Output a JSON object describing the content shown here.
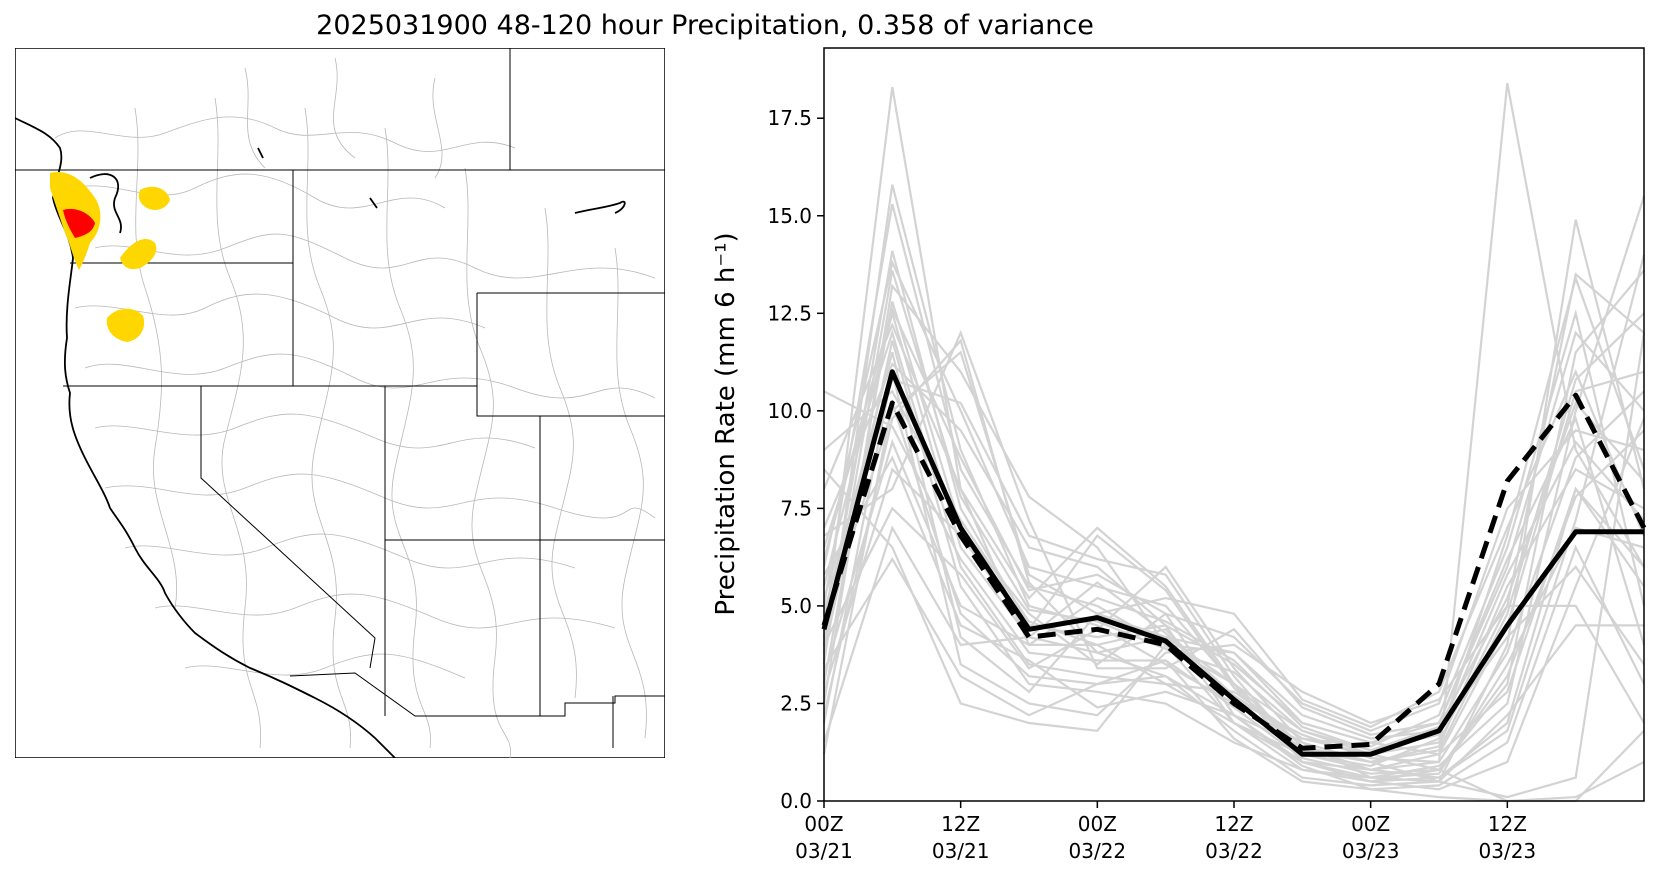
{
  "title": "2025031900 48-120 hour Precipitation, 0.358 of variance",
  "colors": {
    "ensemble": "#d3d3d3",
    "mean": "#000000",
    "basin_high": "#ff0000",
    "basin_mid": "#ffd700",
    "basin_outline": "#b0b0b0",
    "coast": "#000000"
  },
  "map": {
    "region": "western-united-states",
    "highlighted_basins": [
      {
        "area": "olympic-peninsula",
        "level": "high"
      },
      {
        "area": "olympic-peninsula-outer",
        "level": "mid"
      },
      {
        "area": "north-cascades",
        "level": "mid"
      },
      {
        "area": "central-washington",
        "level": "mid"
      },
      {
        "area": "central-oregon",
        "level": "mid"
      }
    ]
  },
  "chart_data": {
    "type": "line",
    "title": "",
    "xlabel": "",
    "ylabel": "Precipitation Rate (mm 6 h⁻¹)",
    "x": [
      0,
      6,
      12,
      18,
      24,
      30,
      36,
      42,
      48,
      54,
      60,
      66,
      72
    ],
    "xlim": [
      0,
      72
    ],
    "xticks": [
      {
        "x": 0,
        "label": [
          "00Z",
          "03/21"
        ]
      },
      {
        "x": 12,
        "label": [
          "12Z",
          "03/21"
        ]
      },
      {
        "x": 24,
        "label": [
          "00Z",
          "03/22"
        ]
      },
      {
        "x": 36,
        "label": [
          "12Z",
          "03/22"
        ]
      },
      {
        "x": 48,
        "label": [
          "00Z",
          "03/23"
        ]
      },
      {
        "x": 60,
        "label": [
          "12Z",
          "03/23"
        ]
      }
    ],
    "ylim": [
      0,
      19.3
    ],
    "yticks": [
      0.0,
      2.5,
      5.0,
      7.5,
      10.0,
      12.5,
      15.0,
      17.5
    ],
    "grid": false,
    "series": [
      {
        "style": "solid",
        "values": [
          4.4,
          11.0,
          7.0,
          4.4,
          4.7,
          4.1,
          2.6,
          1.2,
          1.2,
          1.8,
          4.5,
          6.9,
          6.9
        ]
      },
      {
        "style": "dashed",
        "values": [
          4.5,
          10.2,
          6.8,
          4.2,
          4.4,
          4.0,
          2.5,
          1.35,
          1.45,
          3.0,
          8.2,
          10.4,
          7.0
        ]
      }
    ],
    "ensemble": [
      [
        4.2,
        18.3,
        8.0,
        4.0,
        4.0,
        3.0,
        2.0,
        1.0,
        0.8,
        1.0,
        18.4,
        9.0,
        6.0
      ],
      [
        3.5,
        15.8,
        9.0,
        5.0,
        4.5,
        3.5,
        2.5,
        1.5,
        1.0,
        0.5,
        4.0,
        14.9,
        8.0
      ],
      [
        5.0,
        15.3,
        8.5,
        5.5,
        5.0,
        4.0,
        3.0,
        1.8,
        1.2,
        1.5,
        5.0,
        13.5,
        12.0
      ],
      [
        4.0,
        14.1,
        7.5,
        4.5,
        4.2,
        4.5,
        3.5,
        2.0,
        1.5,
        2.0,
        6.0,
        12.0,
        10.0
      ],
      [
        6.0,
        13.8,
        10.0,
        6.0,
        5.5,
        5.0,
        3.0,
        1.0,
        0.5,
        0.8,
        3.0,
        11.5,
        13.6
      ],
      [
        2.5,
        13.2,
        11.0,
        7.8,
        6.5,
        4.0,
        2.0,
        1.2,
        0.8,
        1.2,
        4.5,
        10.5,
        11.0
      ],
      [
        3.0,
        12.8,
        7.0,
        4.8,
        3.5,
        4.8,
        4.2,
        2.5,
        1.8,
        2.5,
        7.5,
        9.5,
        9.0
      ],
      [
        5.5,
        12.5,
        6.5,
        4.2,
        3.8,
        3.2,
        2.2,
        1.4,
        1.0,
        1.4,
        5.5,
        8.5,
        7.5
      ],
      [
        8.0,
        12.2,
        8.0,
        5.2,
        7.0,
        5.5,
        3.0,
        1.0,
        0.6,
        0.9,
        2.5,
        10.0,
        15.5
      ],
      [
        6.5,
        12.0,
        6.0,
        3.5,
        3.2,
        3.0,
        2.8,
        1.6,
        1.4,
        2.2,
        6.5,
        12.5,
        5.0
      ],
      [
        3.8,
        11.8,
        5.5,
        3.0,
        2.8,
        2.5,
        1.5,
        0.8,
        0.6,
        0.7,
        3.5,
        7.0,
        6.5
      ],
      [
        4.8,
        11.5,
        4.2,
        2.8,
        4.8,
        4.2,
        3.8,
        2.2,
        1.6,
        1.8,
        4.2,
        6.0,
        3.5
      ],
      [
        7.0,
        11.2,
        9.5,
        6.5,
        6.0,
        4.5,
        2.0,
        0.8,
        0.5,
        0.6,
        2.0,
        8.0,
        5.5
      ],
      [
        2.0,
        11.0,
        3.5,
        2.5,
        2.2,
        3.8,
        4.0,
        2.8,
        2.0,
        2.6,
        5.0,
        5.0,
        2.0
      ],
      [
        5.2,
        10.8,
        10.2,
        6.8,
        6.2,
        5.8,
        3.2,
        1.2,
        0.9,
        1.6,
        6.8,
        13.4,
        8.5
      ],
      [
        9.0,
        10.5,
        7.2,
        4.6,
        4.0,
        4.4,
        2.6,
        1.7,
        1.1,
        1.0,
        3.8,
        8.8,
        10.5
      ],
      [
        1.2,
        10.2,
        4.8,
        3.2,
        3.0,
        3.2,
        1.8,
        0.6,
        0.4,
        0.5,
        2.2,
        4.5,
        4.5
      ],
      [
        4.5,
        10.0,
        11.5,
        5.8,
        4.8,
        5.2,
        4.8,
        2.6,
        1.9,
        2.8,
        7.0,
        11.0,
        6.8
      ],
      [
        10.5,
        9.6,
        6.2,
        3.8,
        3.6,
        3.6,
        2.4,
        1.1,
        0.7,
        0.8,
        3.2,
        7.8,
        9.5
      ],
      [
        3.2,
        9.2,
        5.0,
        4.0,
        5.2,
        4.6,
        3.6,
        1.9,
        1.3,
        1.7,
        5.8,
        9.2,
        7.2
      ],
      [
        5.8,
        8.8,
        4.5,
        3.6,
        2.4,
        2.8,
        2.2,
        0.9,
        0.3,
        0.4,
        1.5,
        6.5,
        3.0
      ],
      [
        2.8,
        8.5,
        6.8,
        4.4,
        6.8,
        5.4,
        2.9,
        1.3,
        1.0,
        1.3,
        4.8,
        10.8,
        12.5
      ],
      [
        6.8,
        8.0,
        12.0,
        7.2,
        3.4,
        3.4,
        4.4,
        2.4,
        1.7,
        2.0,
        6.2,
        9.8,
        4.0
      ],
      [
        4.0,
        7.5,
        5.8,
        3.4,
        4.4,
        6.0,
        3.4,
        1.5,
        0.6,
        0.5,
        0.1,
        0.6,
        12.0
      ],
      [
        1.5,
        7.0,
        4.0,
        4.2,
        5.6,
        4.3,
        2.7,
        1.6,
        1.2,
        0.8,
        0.0,
        0.1,
        1.0
      ],
      [
        3.4,
        6.2,
        3.2,
        2.2,
        3.0,
        3.6,
        1.6,
        0.5,
        0.3,
        0.1,
        0.0,
        0.0,
        1.8
      ],
      [
        8.5,
        6.5,
        2.5,
        2.0,
        1.8,
        4.0,
        3.8,
        2.0,
        1.5,
        1.2,
        2.8,
        8.0,
        6.0
      ],
      [
        2.2,
        9.8,
        11.8,
        5.6,
        3.8,
        4.2,
        3.0,
        1.4,
        0.8,
        0.6,
        1.8,
        7.2,
        14.0
      ],
      [
        6.2,
        12.6,
        8.8,
        5.4,
        5.8,
        4.8,
        2.2,
        1.0,
        0.5,
        0.3,
        1.0,
        5.5,
        9.8
      ],
      [
        3.6,
        13.6,
        7.8,
        4.9,
        4.6,
        3.9,
        3.3,
        1.8,
        1.3,
        1.9,
        5.2,
        10.2,
        8.2
      ]
    ]
  }
}
